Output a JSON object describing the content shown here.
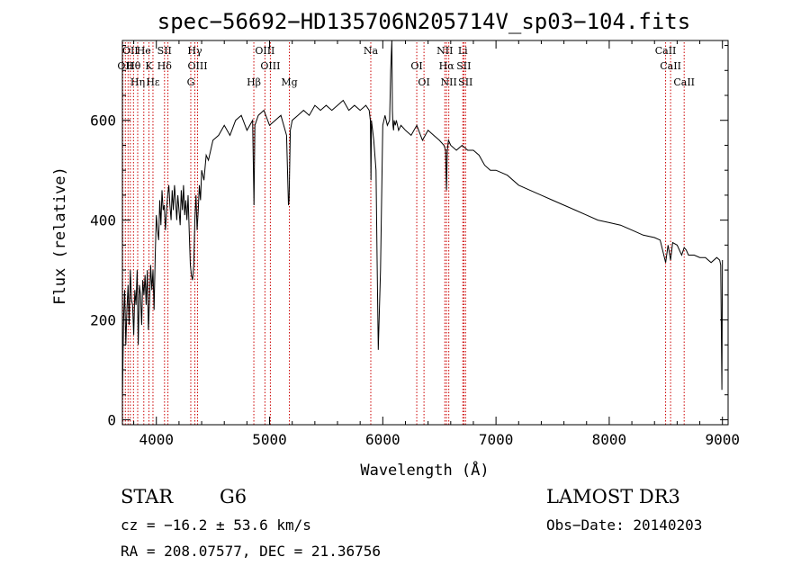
{
  "chart_data": {
    "type": "line",
    "title": "spec−56692−HD135706N205714V_sp03−104.fits",
    "xlabel": "Wavelength (Å)",
    "ylabel": "Flux (relative)",
    "xlim": [
      3700,
      9050
    ],
    "ylim": [
      -10,
      760
    ],
    "xticks": [
      4000,
      5000,
      6000,
      7000,
      8000,
      9000
    ],
    "yticks": [
      0,
      200,
      400,
      600
    ],
    "series": [
      {
        "name": "spectrum",
        "x": [
          3700,
          3710,
          3720,
          3730,
          3740,
          3750,
          3760,
          3770,
          3780,
          3790,
          3800,
          3810,
          3820,
          3830,
          3840,
          3850,
          3860,
          3870,
          3880,
          3890,
          3900,
          3910,
          3920,
          3930,
          3940,
          3950,
          3960,
          3970,
          3980,
          3990,
          4000,
          4010,
          4020,
          4030,
          4040,
          4050,
          4060,
          4070,
          4080,
          4090,
          4100,
          4110,
          4120,
          4130,
          4140,
          4150,
          4160,
          4170,
          4180,
          4190,
          4200,
          4210,
          4220,
          4230,
          4240,
          4250,
          4260,
          4270,
          4280,
          4290,
          4300,
          4310,
          4320,
          4330,
          4340,
          4350,
          4360,
          4370,
          4380,
          4390,
          4400,
          4420,
          4440,
          4460,
          4480,
          4500,
          4550,
          4600,
          4650,
          4700,
          4750,
          4800,
          4850,
          4862,
          4870,
          4900,
          4950,
          5000,
          5050,
          5100,
          5150,
          5167,
          5172,
          5183,
          5200,
          5250,
          5300,
          5350,
          5400,
          5450,
          5500,
          5550,
          5600,
          5650,
          5700,
          5750,
          5800,
          5850,
          5880,
          5890,
          5896,
          5900,
          5920,
          5940,
          5950,
          5960,
          5980,
          6000,
          6020,
          6040,
          6060,
          6070,
          6080,
          6085,
          6090,
          6095,
          6100,
          6110,
          6120,
          6140,
          6160,
          6180,
          6200,
          6250,
          6300,
          6350,
          6400,
          6450,
          6500,
          6540,
          6555,
          6563,
          6570,
          6580,
          6600,
          6650,
          6700,
          6750,
          6800,
          6850,
          6900,
          6950,
          7000,
          7100,
          7200,
          7300,
          7400,
          7500,
          7600,
          7700,
          7800,
          7900,
          8000,
          8100,
          8200,
          8300,
          8400,
          8450,
          8498,
          8520,
          8542,
          8560,
          8600,
          8640,
          8662,
          8680,
          8700,
          8750,
          8800,
          8850,
          8900,
          8950,
          8975,
          8985,
          8995,
          9000
        ],
        "y": [
          40,
          200,
          260,
          150,
          220,
          270,
          190,
          300,
          240,
          230,
          170,
          260,
          230,
          300,
          150,
          270,
          250,
          190,
          280,
          250,
          290,
          230,
          300,
          180,
          240,
          310,
          260,
          300,
          220,
          330,
          410,
          380,
          360,
          440,
          390,
          460,
          420,
          430,
          380,
          420,
          450,
          470,
          430,
          400,
          460,
          420,
          470,
          440,
          400,
          450,
          420,
          390,
          460,
          420,
          470,
          410,
          440,
          400,
          450,
          380,
          310,
          290,
          280,
          310,
          400,
          450,
          380,
          420,
          470,
          440,
          500,
          480,
          530,
          520,
          540,
          560,
          570,
          590,
          570,
          600,
          610,
          580,
          600,
          430,
          590,
          610,
          620,
          590,
          600,
          610,
          570,
          430,
          440,
          580,
          600,
          610,
          620,
          610,
          630,
          620,
          630,
          620,
          630,
          640,
          620,
          630,
          620,
          630,
          620,
          600,
          480,
          600,
          560,
          500,
          320,
          140,
          300,
          590,
          610,
          590,
          600,
          700,
          760,
          620,
          590,
          580,
          600,
          590,
          600,
          580,
          590,
          585,
          580,
          570,
          590,
          560,
          580,
          570,
          560,
          550,
          540,
          460,
          540,
          560,
          550,
          540,
          550,
          540,
          540,
          530,
          510,
          500,
          500,
          490,
          470,
          460,
          450,
          440,
          430,
          420,
          410,
          400,
          395,
          390,
          380,
          370,
          365,
          360,
          315,
          350,
          320,
          355,
          350,
          330,
          345,
          340,
          330,
          330,
          325,
          325,
          315,
          325,
          320,
          310,
          60,
          320
        ]
      }
    ],
    "line_marks": [
      {
        "w": 3704,
        "labels": []
      },
      {
        "w": 3726,
        "labels": [
          "OII"
        ]
      },
      {
        "w": 3750,
        "labels": []
      },
      {
        "w": 3770,
        "labels": [
          "OII"
        ]
      },
      {
        "w": 3798,
        "labels": [
          "Hθ"
        ]
      },
      {
        "w": 3835,
        "labels": [
          "Hη"
        ]
      },
      {
        "w": 3889,
        "labels": [
          "He"
        ]
      },
      {
        "w": 3934,
        "labels": [
          "K"
        ]
      },
      {
        "w": 3970,
        "labels": [
          "Hε"
        ]
      },
      {
        "w": 4072,
        "labels": [
          "SII",
          "Hδ"
        ]
      },
      {
        "w": 4102,
        "labels": []
      },
      {
        "w": 4304,
        "labels": [
          "G"
        ]
      },
      {
        "w": 4340,
        "labels": [
          "Hγ"
        ]
      },
      {
        "w": 4364,
        "labels": [
          "OIII"
        ]
      },
      {
        "w": 4861,
        "labels": [
          "Hβ"
        ]
      },
      {
        "w": 4959,
        "labels": [
          "OIII"
        ]
      },
      {
        "w": 5007,
        "labels": [
          "OIII"
        ]
      },
      {
        "w": 5175,
        "labels": [
          "Mg"
        ]
      },
      {
        "w": 5894,
        "labels": [
          "Na"
        ]
      },
      {
        "w": 6300,
        "labels": [
          "OI"
        ]
      },
      {
        "w": 6364,
        "labels": [
          "OI"
        ]
      },
      {
        "w": 6548,
        "labels": [
          "NII"
        ]
      },
      {
        "w": 6563,
        "labels": [
          "Hα"
        ]
      },
      {
        "w": 6583,
        "labels": [
          "NII"
        ]
      },
      {
        "w": 6707,
        "labels": [
          "Li"
        ]
      },
      {
        "w": 6716,
        "labels": [
          "SII"
        ]
      },
      {
        "w": 6731,
        "labels": [
          "SII"
        ]
      },
      {
        "w": 8498,
        "labels": [
          "CaII"
        ]
      },
      {
        "w": 8542,
        "labels": [
          "CaII"
        ]
      },
      {
        "w": 8662,
        "labels": [
          "CaII"
        ]
      }
    ],
    "label_color": "#cc0000"
  },
  "info": {
    "object_class": "STAR",
    "subclass": "G6",
    "survey": "LAMOST DR3",
    "redshift": "cz = −16.2 ± 53.6 km/s",
    "obs_date": "Obs−Date: 20140203",
    "coords": "RA = 208.07577, DEC =  21.36756"
  }
}
